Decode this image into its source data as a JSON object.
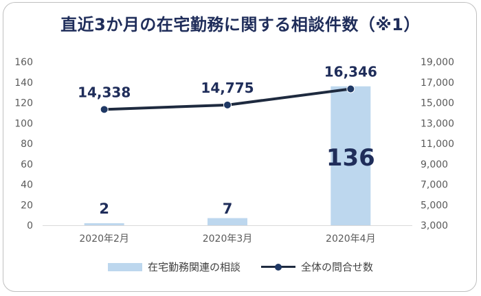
{
  "chart_data": {
    "type": "bar",
    "title": "直近3か月の在宅勤務に関する相談件数（※1）",
    "categories": [
      "2020年2月",
      "2020年3月",
      "2020年4月"
    ],
    "series": [
      {
        "name": "在宅勤務関連の相談",
        "type": "bar",
        "axis": "left",
        "values": [
          2,
          7,
          136
        ],
        "labels": [
          "2",
          "7",
          "136"
        ],
        "color": "#bdd7ee"
      },
      {
        "name": "全体の問合せ数",
        "type": "line",
        "axis": "right",
        "values": [
          14338,
          14775,
          16346
        ],
        "labels": [
          "14,338",
          "14,775",
          "16,346"
        ],
        "color": "#1e2a3f",
        "marker_color": "#1f3864"
      }
    ],
    "y_left": {
      "range": [
        0,
        160
      ],
      "ticks": [
        "0",
        "20",
        "40",
        "60",
        "80",
        "100",
        "120",
        "140",
        "160"
      ]
    },
    "y_right": {
      "range": [
        3000,
        19000
      ],
      "ticks": [
        "3,000",
        "5,000",
        "7,000",
        "9,000",
        "11,000",
        "13,000",
        "15,000",
        "17,000",
        "19,000"
      ]
    },
    "grid": false,
    "legend": "bottom"
  }
}
